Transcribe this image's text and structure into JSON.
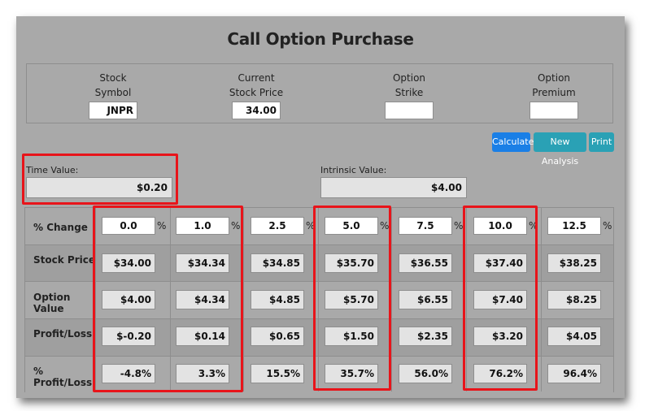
{
  "title": "Call Option Purchase",
  "inputs": {
    "stock_symbol": {
      "label_line1": "Stock",
      "label_line2": "Symbol",
      "value": "JNPR"
    },
    "current_stock_price": {
      "label_line1": "Current",
      "label_line2": "Stock Price",
      "value": "34.00"
    },
    "option_strike": {
      "label_line1": "Option",
      "label_line2": "Strike",
      "value": ""
    },
    "option_premium": {
      "label_line1": "Option",
      "label_line2": "Premium",
      "value": ""
    }
  },
  "buttons": {
    "calculate": "Calculate",
    "new_analysis": "New Analysis",
    "print": "Print"
  },
  "time_value": {
    "label": "Time Value:",
    "value": "$0.20"
  },
  "intrinsic_value": {
    "label": "Intrinsic Value:",
    "value": "$4.00"
  },
  "table": {
    "row_labels": [
      "% Change",
      "Stock Price",
      "Option Value",
      "Profit/Loss",
      "% Profit/Loss"
    ],
    "pct_symbol": "%",
    "pct_change": [
      "0.0",
      "1.0",
      "2.5",
      "5.0",
      "7.5",
      "10.0",
      "12.5"
    ],
    "stock_price": [
      "$34.00",
      "$34.34",
      "$34.85",
      "$35.70",
      "$36.55",
      "$37.40",
      "$38.25"
    ],
    "option_value": [
      "$4.00",
      "$4.34",
      "$4.85",
      "$5.70",
      "$6.55",
      "$7.40",
      "$8.25"
    ],
    "profit_loss": [
      "$-0.20",
      "$0.14",
      "$0.65",
      "$1.50",
      "$2.35",
      "$3.20",
      "$4.05"
    ],
    "pct_profit_loss": [
      "-4.8%",
      "3.3%",
      "15.5%",
      "35.7%",
      "56.0%",
      "76.2%",
      "96.4%"
    ]
  },
  "colors": {
    "highlight": "#e8141a",
    "calculate_button": "#1a7fe6",
    "secondary_button": "#2aa1b5",
    "panel": "#a9a9a9"
  }
}
